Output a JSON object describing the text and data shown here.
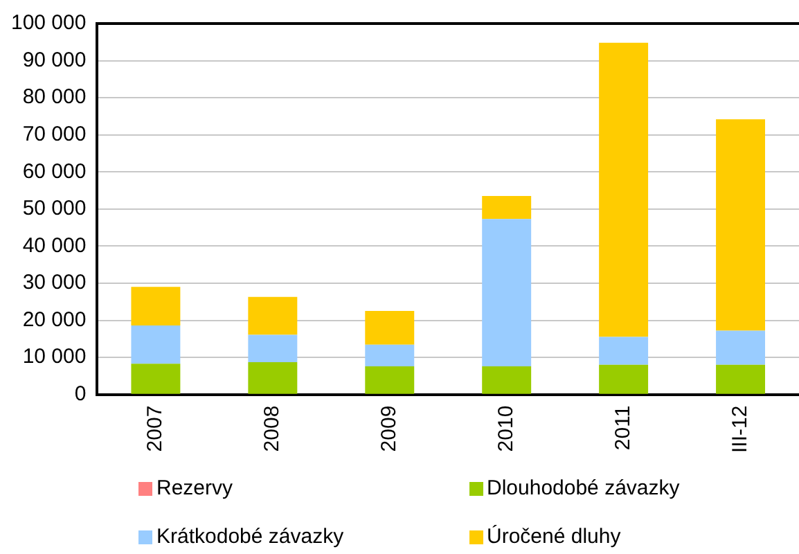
{
  "chart_data": {
    "type": "bar",
    "stacked": true,
    "categories": [
      "2007",
      "2008",
      "2009",
      "2010",
      "2011",
      "III-12"
    ],
    "series": [
      {
        "name": "Rezervy",
        "color": "#ff8080",
        "values": [
          0,
          0,
          0,
          0,
          0,
          0
        ]
      },
      {
        "name": "Dlouhodobé závazky",
        "color": "#99cc00",
        "values": [
          8300,
          8700,
          7600,
          7600,
          8000,
          8000
        ]
      },
      {
        "name": "Krátkodobé závazky",
        "color": "#99ccff",
        "values": [
          10300,
          7400,
          5800,
          39700,
          7500,
          9200
        ]
      },
      {
        "name": "Úročené dluhy",
        "color": "#ffcc00",
        "values": [
          10400,
          10200,
          9100,
          6200,
          79300,
          57000
        ]
      }
    ],
    "ylim": [
      0,
      100000
    ],
    "yticks": [
      {
        "value": 0,
        "label": "0"
      },
      {
        "value": 10000,
        "label": "10 000"
      },
      {
        "value": 20000,
        "label": "20 000"
      },
      {
        "value": 30000,
        "label": "30 000"
      },
      {
        "value": 40000,
        "label": "40 000"
      },
      {
        "value": 50000,
        "label": "50 000"
      },
      {
        "value": 60000,
        "label": "60 000"
      },
      {
        "value": 70000,
        "label": "70 000"
      },
      {
        "value": 80000,
        "label": "80 000"
      },
      {
        "value": 90000,
        "label": "90 000"
      },
      {
        "value": 100000,
        "label": "100 000"
      }
    ],
    "grid": "y",
    "legend": "bottom"
  }
}
